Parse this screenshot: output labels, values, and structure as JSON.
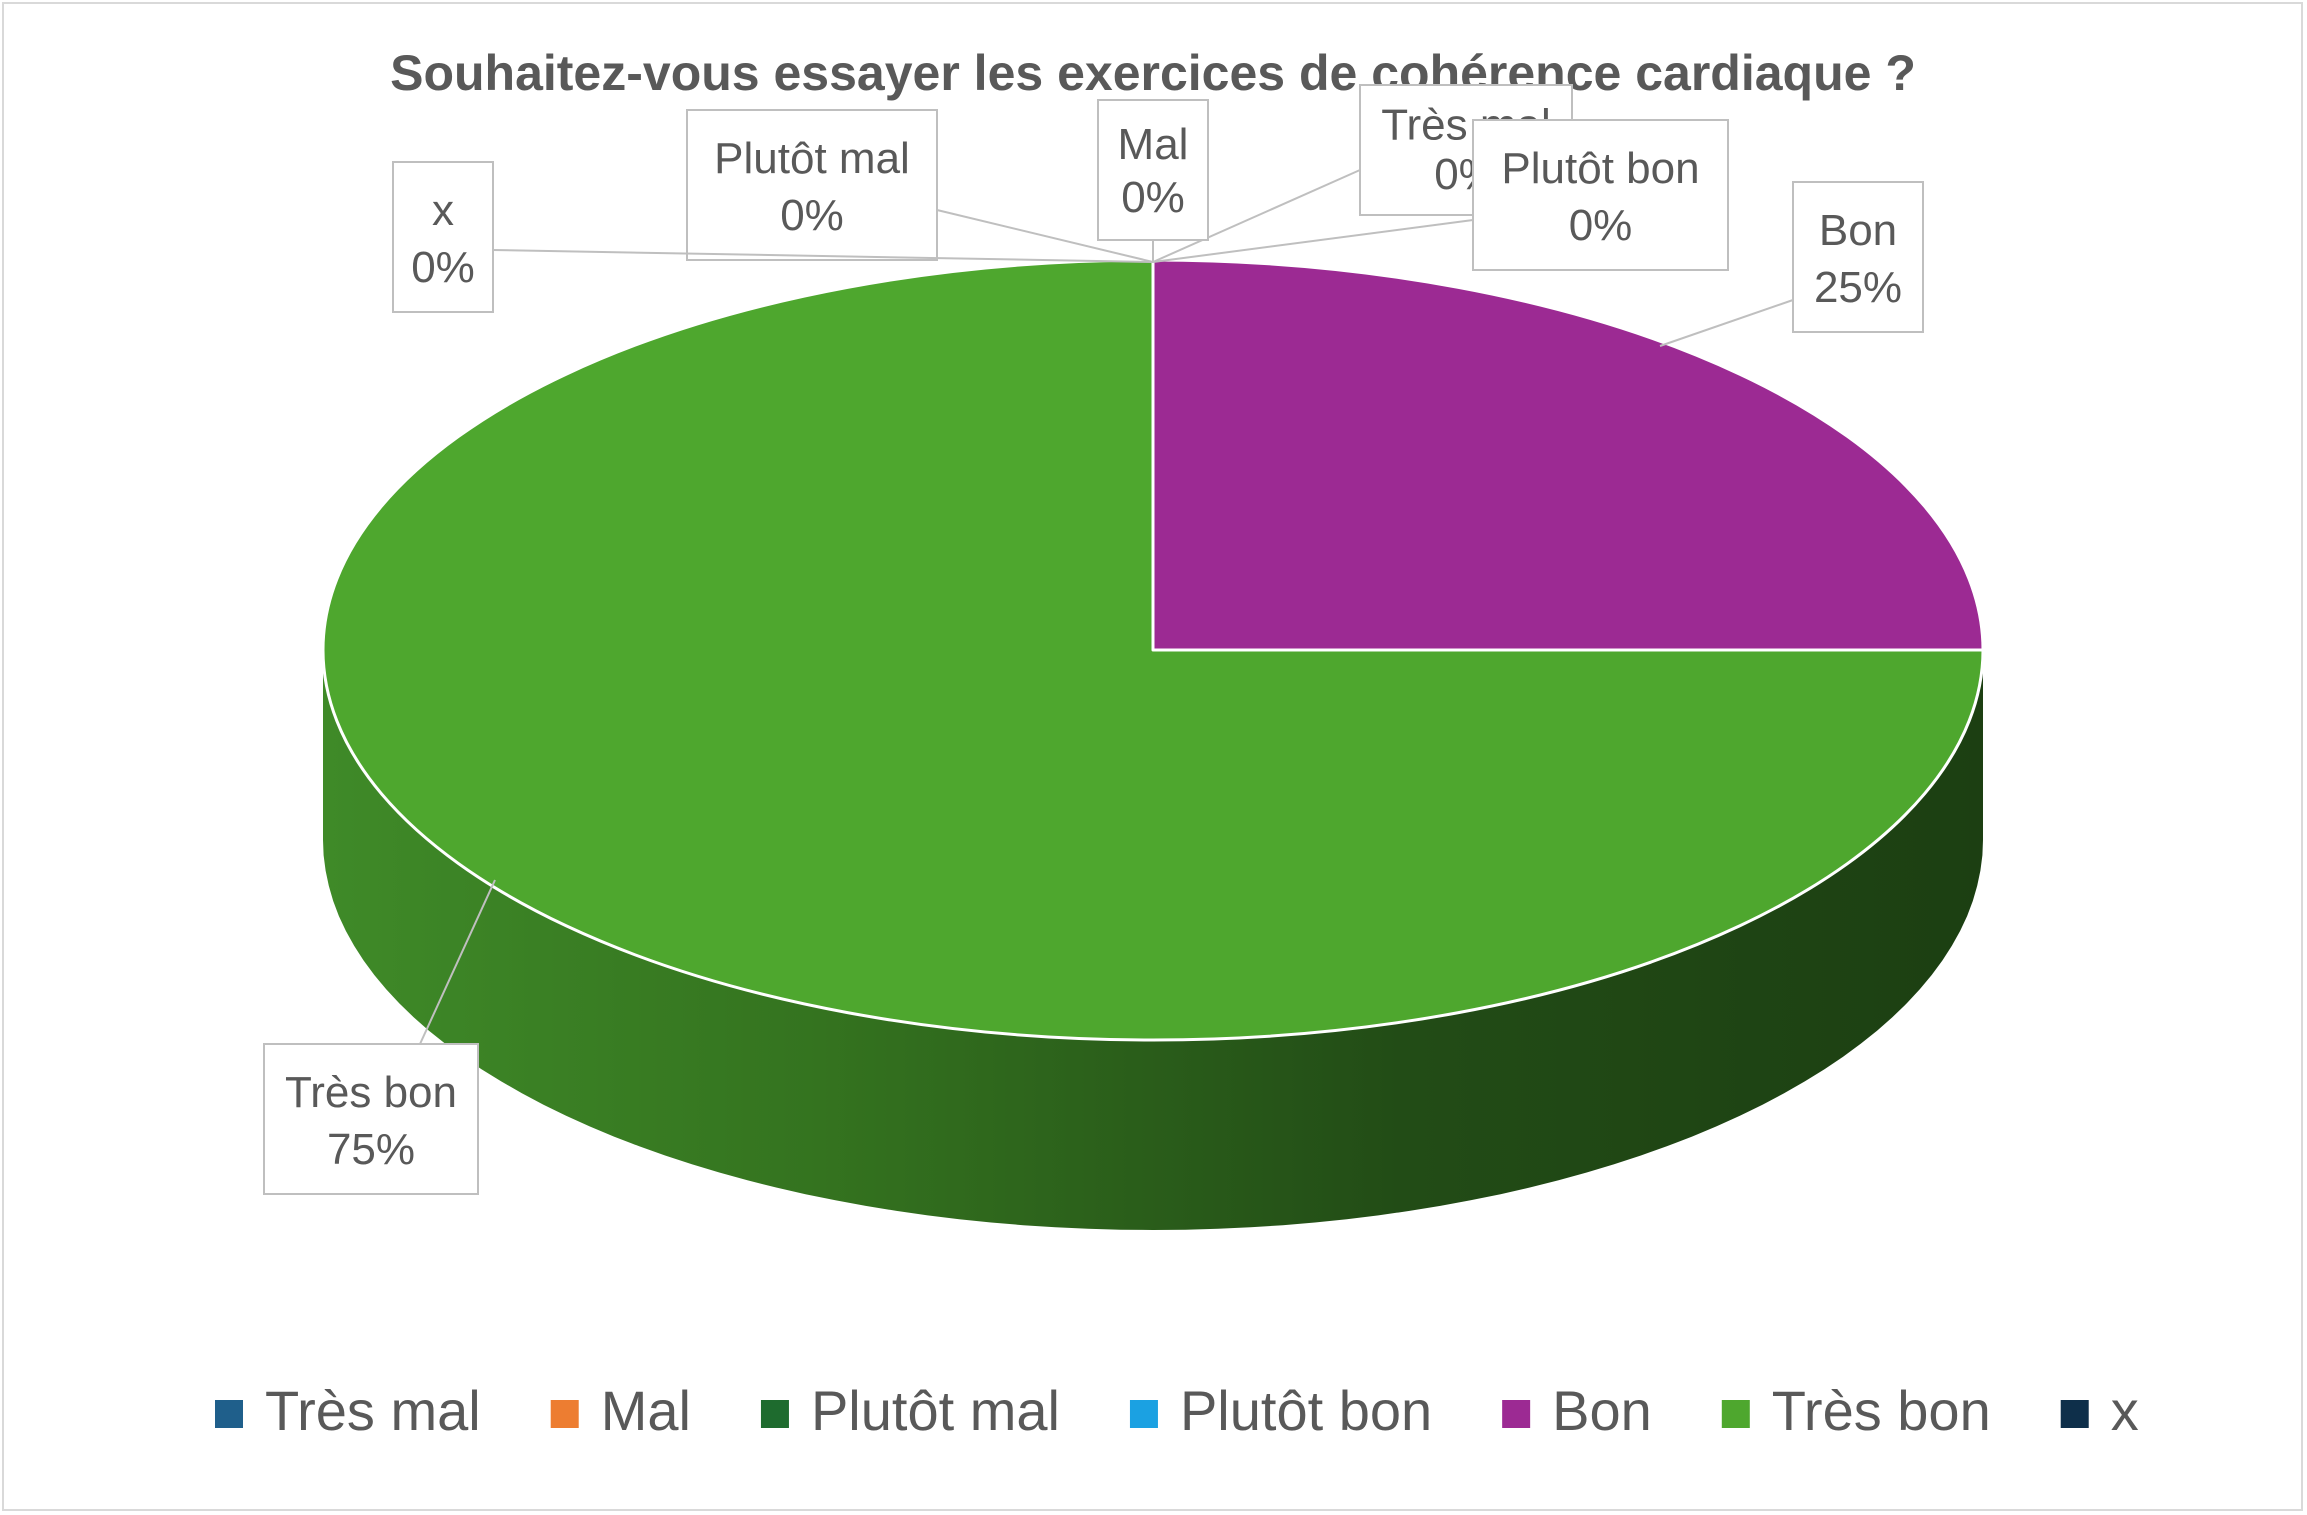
{
  "chart_data": {
    "type": "pie",
    "title": "Souhaitez-vous essayer les exercices de cohérence cardiaque ?",
    "categories": [
      "Très mal",
      "Mal",
      "Plutôt mal",
      "Plutôt bon",
      "Bon",
      "Très bon",
      "x"
    ],
    "values": [
      0,
      0,
      0,
      0,
      25,
      75,
      0
    ],
    "labels": [
      "0%",
      "0%",
      "0%",
      "0%",
      "25%",
      "75%",
      "0%"
    ],
    "colors": [
      "#1f5f8b",
      "#ed7d31",
      "#1e6b2e",
      "#1ba1e2",
      "#9c2a93",
      "#4ea72e",
      "#0e2f4a"
    ],
    "style": "3d",
    "legend_position": "bottom"
  }
}
